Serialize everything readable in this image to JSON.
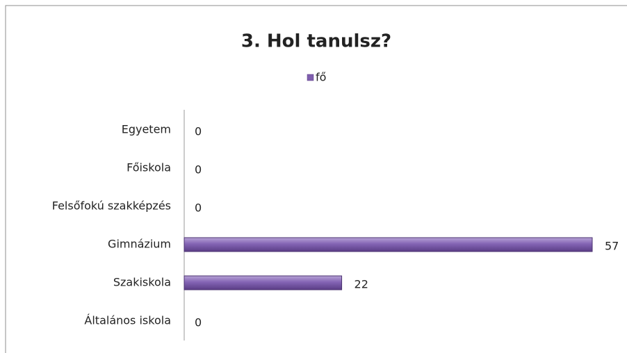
{
  "chart_data": {
    "type": "bar",
    "orientation": "horizontal",
    "title": "3. Hol tanulsz?",
    "categories": [
      "Egyetem",
      "Főiskola",
      "Felsőfokú szakképzés",
      "Gimnázium",
      "Szakiskola",
      "Általános iskola"
    ],
    "series": [
      {
        "name": "fő",
        "color": "#7f5fae",
        "values": [
          0,
          0,
          0,
          57,
          22,
          0
        ]
      }
    ],
    "legend": "top"
  }
}
